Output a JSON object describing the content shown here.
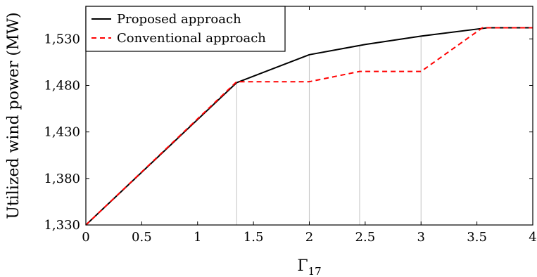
{
  "chart_data": {
    "type": "line",
    "title": "",
    "xlabel": "Γ",
    "xlabel_subscript": "17",
    "ylabel": "Utilized wind power (MW)",
    "xlim": [
      0,
      4
    ],
    "ylim": [
      1330,
      1565
    ],
    "x_ticks": [
      0,
      0.5,
      1,
      1.5,
      2,
      2.5,
      3,
      3.5,
      4
    ],
    "x_tick_labels": [
      "0",
      "0.5",
      "1",
      "1.5",
      "2",
      "2.5",
      "3",
      "3.5",
      "4"
    ],
    "y_ticks": [
      1330,
      1380,
      1430,
      1480,
      1530
    ],
    "y_tick_labels": [
      "1,330",
      "1,380",
      "1,430",
      "1,480",
      "1,530"
    ],
    "vertical_guides_x": [
      1.35,
      2,
      2.45,
      3
    ],
    "grid": false,
    "legend_position": "top-left",
    "series": [
      {
        "name": "Proposed approach",
        "color": "#000000",
        "dash": "solid",
        "x": [
          0,
          1.35,
          2,
          2.5,
          3,
          3.6,
          4
        ],
        "y": [
          1330,
          1483,
          1513,
          1524,
          1533,
          1542,
          1542
        ]
      },
      {
        "name": "Conventional approach",
        "color": "#ff0000",
        "dash": "dashed",
        "x": [
          0,
          1.35,
          2,
          2.45,
          3,
          3.55,
          4
        ],
        "y": [
          1330,
          1484,
          1484,
          1495,
          1495,
          1542,
          1542
        ]
      }
    ]
  }
}
